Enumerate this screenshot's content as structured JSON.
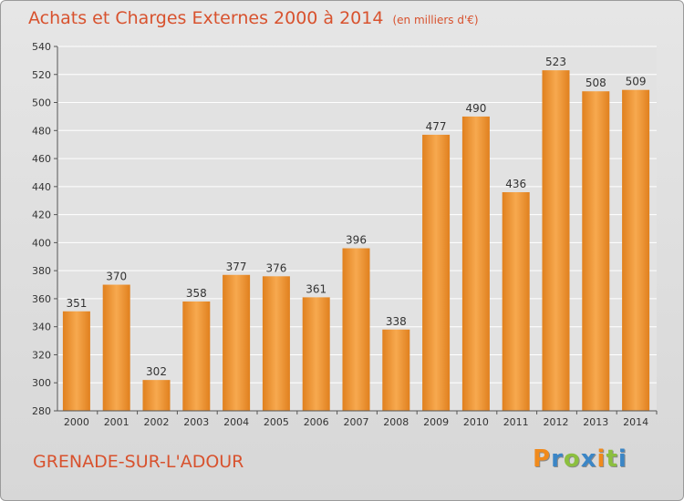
{
  "title": "Achats et Charges Externes 2000 à 2014",
  "unit": "(en milliers d'€)",
  "location": "GRENADE-SUR-L'ADOUR",
  "brand": "Proxiti",
  "colors": {
    "title": "#d8522e",
    "bar_light": "#f7a94f",
    "bar_dark": "#e0801e",
    "grid": "#ffffff",
    "brand_letters": [
      "#f08a1c",
      "#3b86c6",
      "#8cbf3f",
      "#3b86c6",
      "#f08a1c",
      "#8cbf3f",
      "#3b86c6"
    ]
  },
  "chart_data": {
    "type": "bar",
    "title": "Achats et Charges Externes 2000 à 2014",
    "subtitle": "(en milliers d'€)",
    "categories": [
      "2000",
      "2001",
      "2002",
      "2003",
      "2004",
      "2005",
      "2006",
      "2007",
      "2008",
      "2009",
      "2010",
      "2011",
      "2012",
      "2013",
      "2014"
    ],
    "values": [
      351,
      370,
      302,
      358,
      377,
      376,
      361,
      396,
      338,
      477,
      490,
      436,
      523,
      508,
      509
    ],
    "ylim": [
      280,
      540
    ],
    "yticks": [
      280,
      300,
      320,
      340,
      360,
      380,
      400,
      420,
      440,
      460,
      480,
      500,
      520,
      540
    ],
    "grid": true,
    "xlabel": "",
    "ylabel": ""
  }
}
